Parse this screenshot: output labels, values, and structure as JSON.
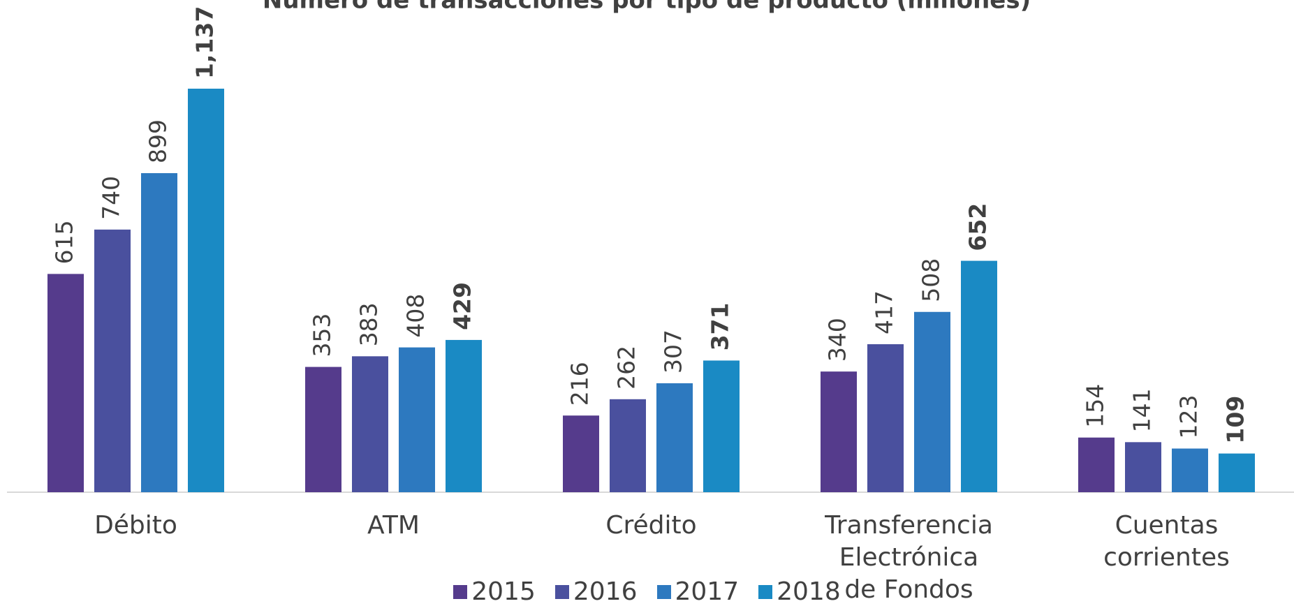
{
  "chart_data": {
    "type": "bar",
    "title": "Número de transacciones por tipo de producto (millones)",
    "categories": [
      "Débito",
      "ATM",
      "Crédito",
      "Transferencia Electrónica de Fondos",
      "Cuentas corrientes"
    ],
    "series": [
      {
        "name": "2015",
        "color": "#553b8c",
        "values": [
          615,
          353,
          216,
          340,
          154
        ]
      },
      {
        "name": "2016",
        "color": "#4a509e",
        "values": [
          740,
          383,
          262,
          417,
          141
        ]
      },
      {
        "name": "2017",
        "color": "#2d79bf",
        "values": [
          899,
          408,
          307,
          508,
          123
        ]
      },
      {
        "name": "2018",
        "color": "#1a8ac4",
        "values": [
          1137,
          429,
          371,
          652,
          109
        ],
        "value_labels": [
          "1,137",
          "429",
          "371",
          "652",
          "109"
        ]
      }
    ],
    "ylim": [
      0,
      1200
    ],
    "legend": "bottom"
  }
}
